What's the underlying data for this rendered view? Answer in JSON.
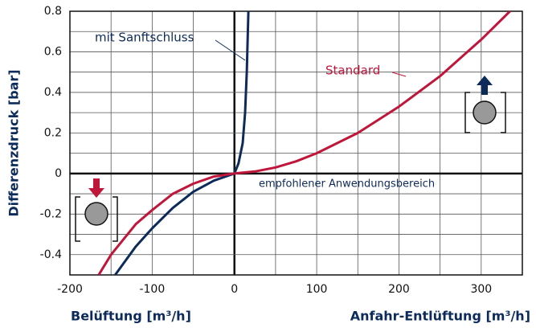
{
  "chart_data": {
    "type": "line",
    "y_label": "Differenzdruck [bar]",
    "x_label_left": "Belüftung [m³/h]",
    "x_label_right": "Anfahr-Entlüftung [m³/h]",
    "annotation": "empfohlener Anwendungsbereich",
    "xlim": [
      -200,
      350
    ],
    "ylim": [
      -0.5,
      0.8
    ],
    "xticks": [
      -200,
      -100,
      0,
      100,
      200,
      300
    ],
    "yticks": [
      0.8,
      0.6,
      0.4,
      0.2,
      0,
      -0.2,
      -0.4
    ],
    "x_minor_grid": [
      -150,
      -50,
      50,
      150,
      250,
      350
    ],
    "y_minor_grid": [
      0.7,
      0.5,
      0.3,
      0.1,
      -0.1,
      -0.3,
      -0.5
    ],
    "grid": true,
    "series": [
      {
        "name": "mit Sanftschluss",
        "color": "#0d2b5a",
        "x": [
          -145,
          -120,
          -100,
          -75,
          -50,
          -25,
          0,
          5,
          10,
          13,
          15,
          16,
          17
        ],
        "values": [
          -0.5,
          -0.36,
          -0.27,
          -0.17,
          -0.09,
          -0.035,
          0,
          0.05,
          0.15,
          0.3,
          0.5,
          0.65,
          0.8
        ]
      },
      {
        "name": "Standard",
        "color": "#c0163a",
        "x": [
          -165,
          -150,
          -120,
          -100,
          -75,
          -50,
          -25,
          0,
          25,
          50,
          75,
          100,
          150,
          200,
          250,
          300,
          335
        ],
        "values": [
          -0.5,
          -0.4,
          -0.25,
          -0.18,
          -0.1,
          -0.05,
          -0.015,
          0,
          0.01,
          0.03,
          0.06,
          0.1,
          0.2,
          0.33,
          0.48,
          0.66,
          0.8
        ]
      }
    ]
  }
}
